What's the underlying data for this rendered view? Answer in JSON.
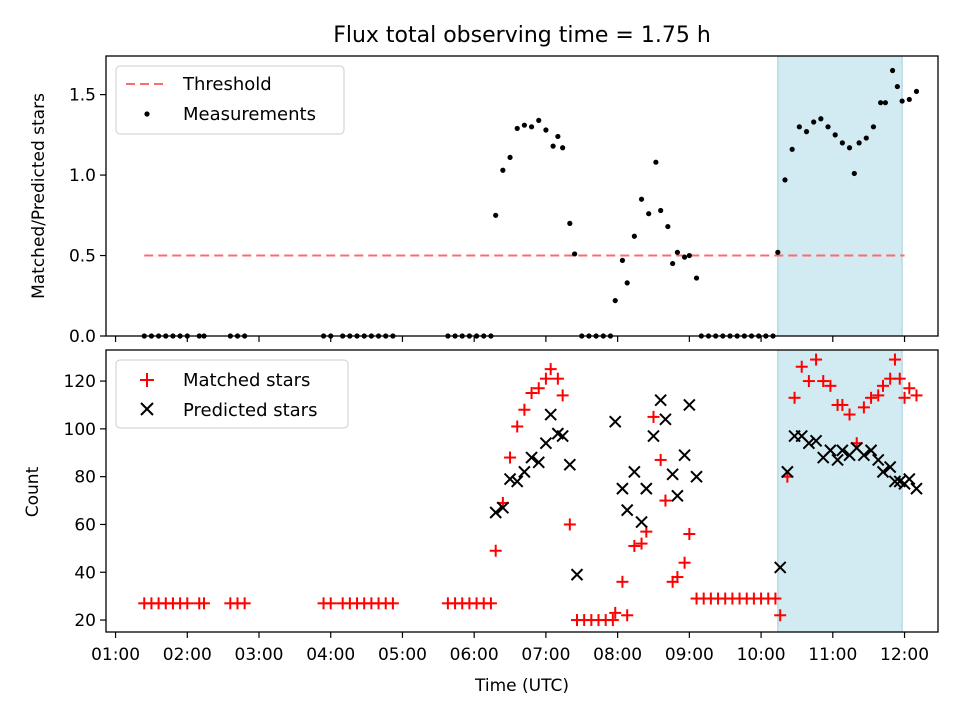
{
  "chart_data": [
    {
      "type": "scatter",
      "title": "Flux total observing time = 1.75 h",
      "xlabel": "",
      "ylabel": "Matched/Predicted stars",
      "xlim": [
        "00:52",
        "12:28"
      ],
      "ylim": [
        0,
        1.74
      ],
      "yticks": [
        0.0,
        0.5,
        1.0,
        1.5
      ],
      "ytick_labels": [
        "0.0",
        "0.5",
        "1.0",
        "1.5"
      ],
      "grid": false,
      "legend_position": "top-left",
      "highlight_span": {
        "start": "10:14",
        "end": "11:58",
        "color": "#add8e6"
      },
      "threshold": {
        "name": "Threshold",
        "y": 0.5,
        "x_start": "01:24",
        "x_end": "12:00",
        "color": "#ff6b6b",
        "style": "dashed"
      },
      "series": [
        {
          "name": "Measurements",
          "marker": "dot",
          "color": "#000000",
          "points": [
            [
              "01:24",
              0
            ],
            [
              "01:30",
              0
            ],
            [
              "01:36",
              0
            ],
            [
              "01:42",
              0
            ],
            [
              "01:48",
              0
            ],
            [
              "01:54",
              0
            ],
            [
              "02:00",
              0
            ],
            [
              "02:10",
              0
            ],
            [
              "02:14",
              0
            ],
            [
              "02:36",
              0
            ],
            [
              "02:42",
              0
            ],
            [
              "02:48",
              0
            ],
            [
              "03:54",
              0
            ],
            [
              "04:00",
              0
            ],
            [
              "04:10",
              0
            ],
            [
              "04:16",
              0
            ],
            [
              "04:22",
              0
            ],
            [
              "04:28",
              0
            ],
            [
              "04:34",
              0
            ],
            [
              "04:40",
              0
            ],
            [
              "04:46",
              0
            ],
            [
              "04:52",
              0
            ],
            [
              "05:38",
              0
            ],
            [
              "05:44",
              0
            ],
            [
              "05:50",
              0
            ],
            [
              "05:56",
              0
            ],
            [
              "06:02",
              0
            ],
            [
              "06:08",
              0
            ],
            [
              "06:14",
              0
            ],
            [
              "06:18",
              0.75
            ],
            [
              "06:24",
              1.03
            ],
            [
              "06:30",
              1.11
            ],
            [
              "06:36",
              1.29
            ],
            [
              "06:42",
              1.31
            ],
            [
              "06:48",
              1.3
            ],
            [
              "06:54",
              1.34
            ],
            [
              "07:00",
              1.28
            ],
            [
              "07:06",
              1.18
            ],
            [
              "07:10",
              1.24
            ],
            [
              "07:14",
              1.17
            ],
            [
              "07:20",
              0.7
            ],
            [
              "07:24",
              0.51
            ],
            [
              "07:30",
              0
            ],
            [
              "07:36",
              0
            ],
            [
              "07:42",
              0
            ],
            [
              "07:48",
              0
            ],
            [
              "07:54",
              0
            ],
            [
              "07:58",
              0.22
            ],
            [
              "08:04",
              0.47
            ],
            [
              "08:08",
              0.33
            ],
            [
              "08:14",
              0.62
            ],
            [
              "08:20",
              0.85
            ],
            [
              "08:26",
              0.76
            ],
            [
              "08:32",
              1.08
            ],
            [
              "08:36",
              0.78
            ],
            [
              "08:42",
              0.68
            ],
            [
              "08:46",
              0.45
            ],
            [
              "08:50",
              0.52
            ],
            [
              "08:56",
              0.49
            ],
            [
              "09:00",
              0.5
            ],
            [
              "09:06",
              0.36
            ],
            [
              "09:10",
              0
            ],
            [
              "09:16",
              0
            ],
            [
              "09:22",
              0
            ],
            [
              "09:28",
              0
            ],
            [
              "09:34",
              0
            ],
            [
              "09:40",
              0
            ],
            [
              "09:46",
              0
            ],
            [
              "09:52",
              0
            ],
            [
              "09:58",
              0
            ],
            [
              "10:04",
              0
            ],
            [
              "10:10",
              0
            ],
            [
              "10:14",
              0.52
            ],
            [
              "10:20",
              0.97
            ],
            [
              "10:26",
              1.16
            ],
            [
              "10:32",
              1.3
            ],
            [
              "10:38",
              1.27
            ],
            [
              "10:44",
              1.33
            ],
            [
              "10:50",
              1.35
            ],
            [
              "10:56",
              1.3
            ],
            [
              "11:02",
              1.25
            ],
            [
              "11:08",
              1.2
            ],
            [
              "11:14",
              1.17
            ],
            [
              "11:18",
              1.01
            ],
            [
              "11:22",
              1.2
            ],
            [
              "11:28",
              1.23
            ],
            [
              "11:34",
              1.3
            ],
            [
              "11:40",
              1.45
            ],
            [
              "11:44",
              1.45
            ],
            [
              "11:50",
              1.65
            ],
            [
              "11:54",
              1.55
            ],
            [
              "11:58",
              1.46
            ],
            [
              "12:04",
              1.47
            ],
            [
              "12:10",
              1.52
            ]
          ]
        }
      ]
    },
    {
      "type": "scatter",
      "title": "",
      "xlabel": "Time (UTC)",
      "ylabel": "Count",
      "xlim": [
        "00:52",
        "12:28"
      ],
      "ylim": [
        15,
        133
      ],
      "yticks": [
        20,
        40,
        60,
        80,
        100,
        120
      ],
      "ytick_labels": [
        "20",
        "40",
        "60",
        "80",
        "100",
        "120"
      ],
      "xtick_labels": [
        "01:00",
        "02:00",
        "03:00",
        "04:00",
        "05:00",
        "06:00",
        "07:00",
        "08:00",
        "09:00",
        "10:00",
        "11:00",
        "12:00"
      ],
      "grid": false,
      "legend_position": "top-left",
      "highlight_span": {
        "start": "10:14",
        "end": "11:58",
        "color": "#add8e6"
      },
      "series": [
        {
          "name": "Matched stars",
          "marker": "plus",
          "color": "#ff0000",
          "points": [
            [
              "01:24",
              27
            ],
            [
              "01:30",
              27
            ],
            [
              "01:36",
              27
            ],
            [
              "01:42",
              27
            ],
            [
              "01:48",
              27
            ],
            [
              "01:54",
              27
            ],
            [
              "02:00",
              27
            ],
            [
              "02:10",
              27
            ],
            [
              "02:14",
              27
            ],
            [
              "02:36",
              27
            ],
            [
              "02:42",
              27
            ],
            [
              "02:48",
              27
            ],
            [
              "03:54",
              27
            ],
            [
              "04:00",
              27
            ],
            [
              "04:10",
              27
            ],
            [
              "04:16",
              27
            ],
            [
              "04:22",
              27
            ],
            [
              "04:28",
              27
            ],
            [
              "04:34",
              27
            ],
            [
              "04:40",
              27
            ],
            [
              "04:46",
              27
            ],
            [
              "04:52",
              27
            ],
            [
              "05:38",
              27
            ],
            [
              "05:44",
              27
            ],
            [
              "05:50",
              27
            ],
            [
              "05:56",
              27
            ],
            [
              "06:02",
              27
            ],
            [
              "06:08",
              27
            ],
            [
              "06:14",
              27
            ],
            [
              "06:18",
              49
            ],
            [
              "06:24",
              69
            ],
            [
              "06:30",
              88
            ],
            [
              "06:36",
              101
            ],
            [
              "06:42",
              108
            ],
            [
              "06:48",
              115
            ],
            [
              "06:54",
              117
            ],
            [
              "07:00",
              121
            ],
            [
              "07:04",
              125
            ],
            [
              "07:10",
              121
            ],
            [
              "07:14",
              114
            ],
            [
              "07:20",
              60
            ],
            [
              "07:26",
              20
            ],
            [
              "07:32",
              20
            ],
            [
              "07:38",
              20
            ],
            [
              "07:44",
              20
            ],
            [
              "07:50",
              20
            ],
            [
              "07:56",
              20
            ],
            [
              "07:58",
              23
            ],
            [
              "08:04",
              36
            ],
            [
              "08:08",
              22
            ],
            [
              "08:14",
              51
            ],
            [
              "08:20",
              52
            ],
            [
              "08:24",
              57
            ],
            [
              "08:30",
              105
            ],
            [
              "08:36",
              87
            ],
            [
              "08:40",
              70
            ],
            [
              "08:46",
              36
            ],
            [
              "08:50",
              38
            ],
            [
              "08:56",
              44
            ],
            [
              "09:00",
              56
            ],
            [
              "09:06",
              29
            ],
            [
              "09:12",
              29
            ],
            [
              "09:18",
              29
            ],
            [
              "09:24",
              29
            ],
            [
              "09:30",
              29
            ],
            [
              "09:36",
              29
            ],
            [
              "09:42",
              29
            ],
            [
              "09:48",
              29
            ],
            [
              "09:54",
              29
            ],
            [
              "10:00",
              29
            ],
            [
              "10:06",
              29
            ],
            [
              "10:12",
              29
            ],
            [
              "10:16",
              22
            ],
            [
              "10:22",
              80
            ],
            [
              "10:28",
              113
            ],
            [
              "10:34",
              126
            ],
            [
              "10:40",
              120
            ],
            [
              "10:46",
              129
            ],
            [
              "10:52",
              120
            ],
            [
              "10:58",
              118
            ],
            [
              "11:04",
              110
            ],
            [
              "11:08",
              110
            ],
            [
              "11:14",
              106
            ],
            [
              "11:20",
              94
            ],
            [
              "11:26",
              109
            ],
            [
              "11:32",
              113
            ],
            [
              "11:38",
              114
            ],
            [
              "11:42",
              118
            ],
            [
              "11:48",
              121
            ],
            [
              "11:52",
              129
            ],
            [
              "11:56",
              121
            ],
            [
              "12:00",
              113
            ],
            [
              "12:04",
              117
            ],
            [
              "12:10",
              114
            ]
          ]
        },
        {
          "name": "Predicted stars",
          "marker": "x",
          "color": "#000000",
          "points": [
            [
              "06:18",
              65
            ],
            [
              "06:24",
              67
            ],
            [
              "06:30",
              79
            ],
            [
              "06:36",
              78
            ],
            [
              "06:42",
              82
            ],
            [
              "06:48",
              88
            ],
            [
              "06:54",
              86
            ],
            [
              "07:00",
              94
            ],
            [
              "07:04",
              106
            ],
            [
              "07:10",
              98
            ],
            [
              "07:14",
              97
            ],
            [
              "07:20",
              85
            ],
            [
              "07:26",
              39
            ],
            [
              "07:58",
              103
            ],
            [
              "08:04",
              75
            ],
            [
              "08:08",
              66
            ],
            [
              "08:14",
              82
            ],
            [
              "08:20",
              61
            ],
            [
              "08:24",
              75
            ],
            [
              "08:30",
              97
            ],
            [
              "08:36",
              112
            ],
            [
              "08:40",
              104
            ],
            [
              "08:46",
              81
            ],
            [
              "08:50",
              72
            ],
            [
              "08:56",
              89
            ],
            [
              "09:00",
              110
            ],
            [
              "09:06",
              80
            ],
            [
              "10:16",
              42
            ],
            [
              "10:22",
              82
            ],
            [
              "10:28",
              97
            ],
            [
              "10:34",
              97
            ],
            [
              "10:40",
              94
            ],
            [
              "10:46",
              95
            ],
            [
              "10:52",
              88
            ],
            [
              "10:58",
              91
            ],
            [
              "11:04",
              87
            ],
            [
              "11:08",
              91
            ],
            [
              "11:14",
              89
            ],
            [
              "11:20",
              92
            ],
            [
              "11:26",
              89
            ],
            [
              "11:32",
              91
            ],
            [
              "11:38",
              87
            ],
            [
              "11:42",
              82
            ],
            [
              "11:48",
              84
            ],
            [
              "11:52",
              78
            ],
            [
              "11:56",
              78
            ],
            [
              "12:00",
              77
            ],
            [
              "12:04",
              79
            ],
            [
              "12:10",
              75
            ]
          ]
        }
      ]
    }
  ]
}
